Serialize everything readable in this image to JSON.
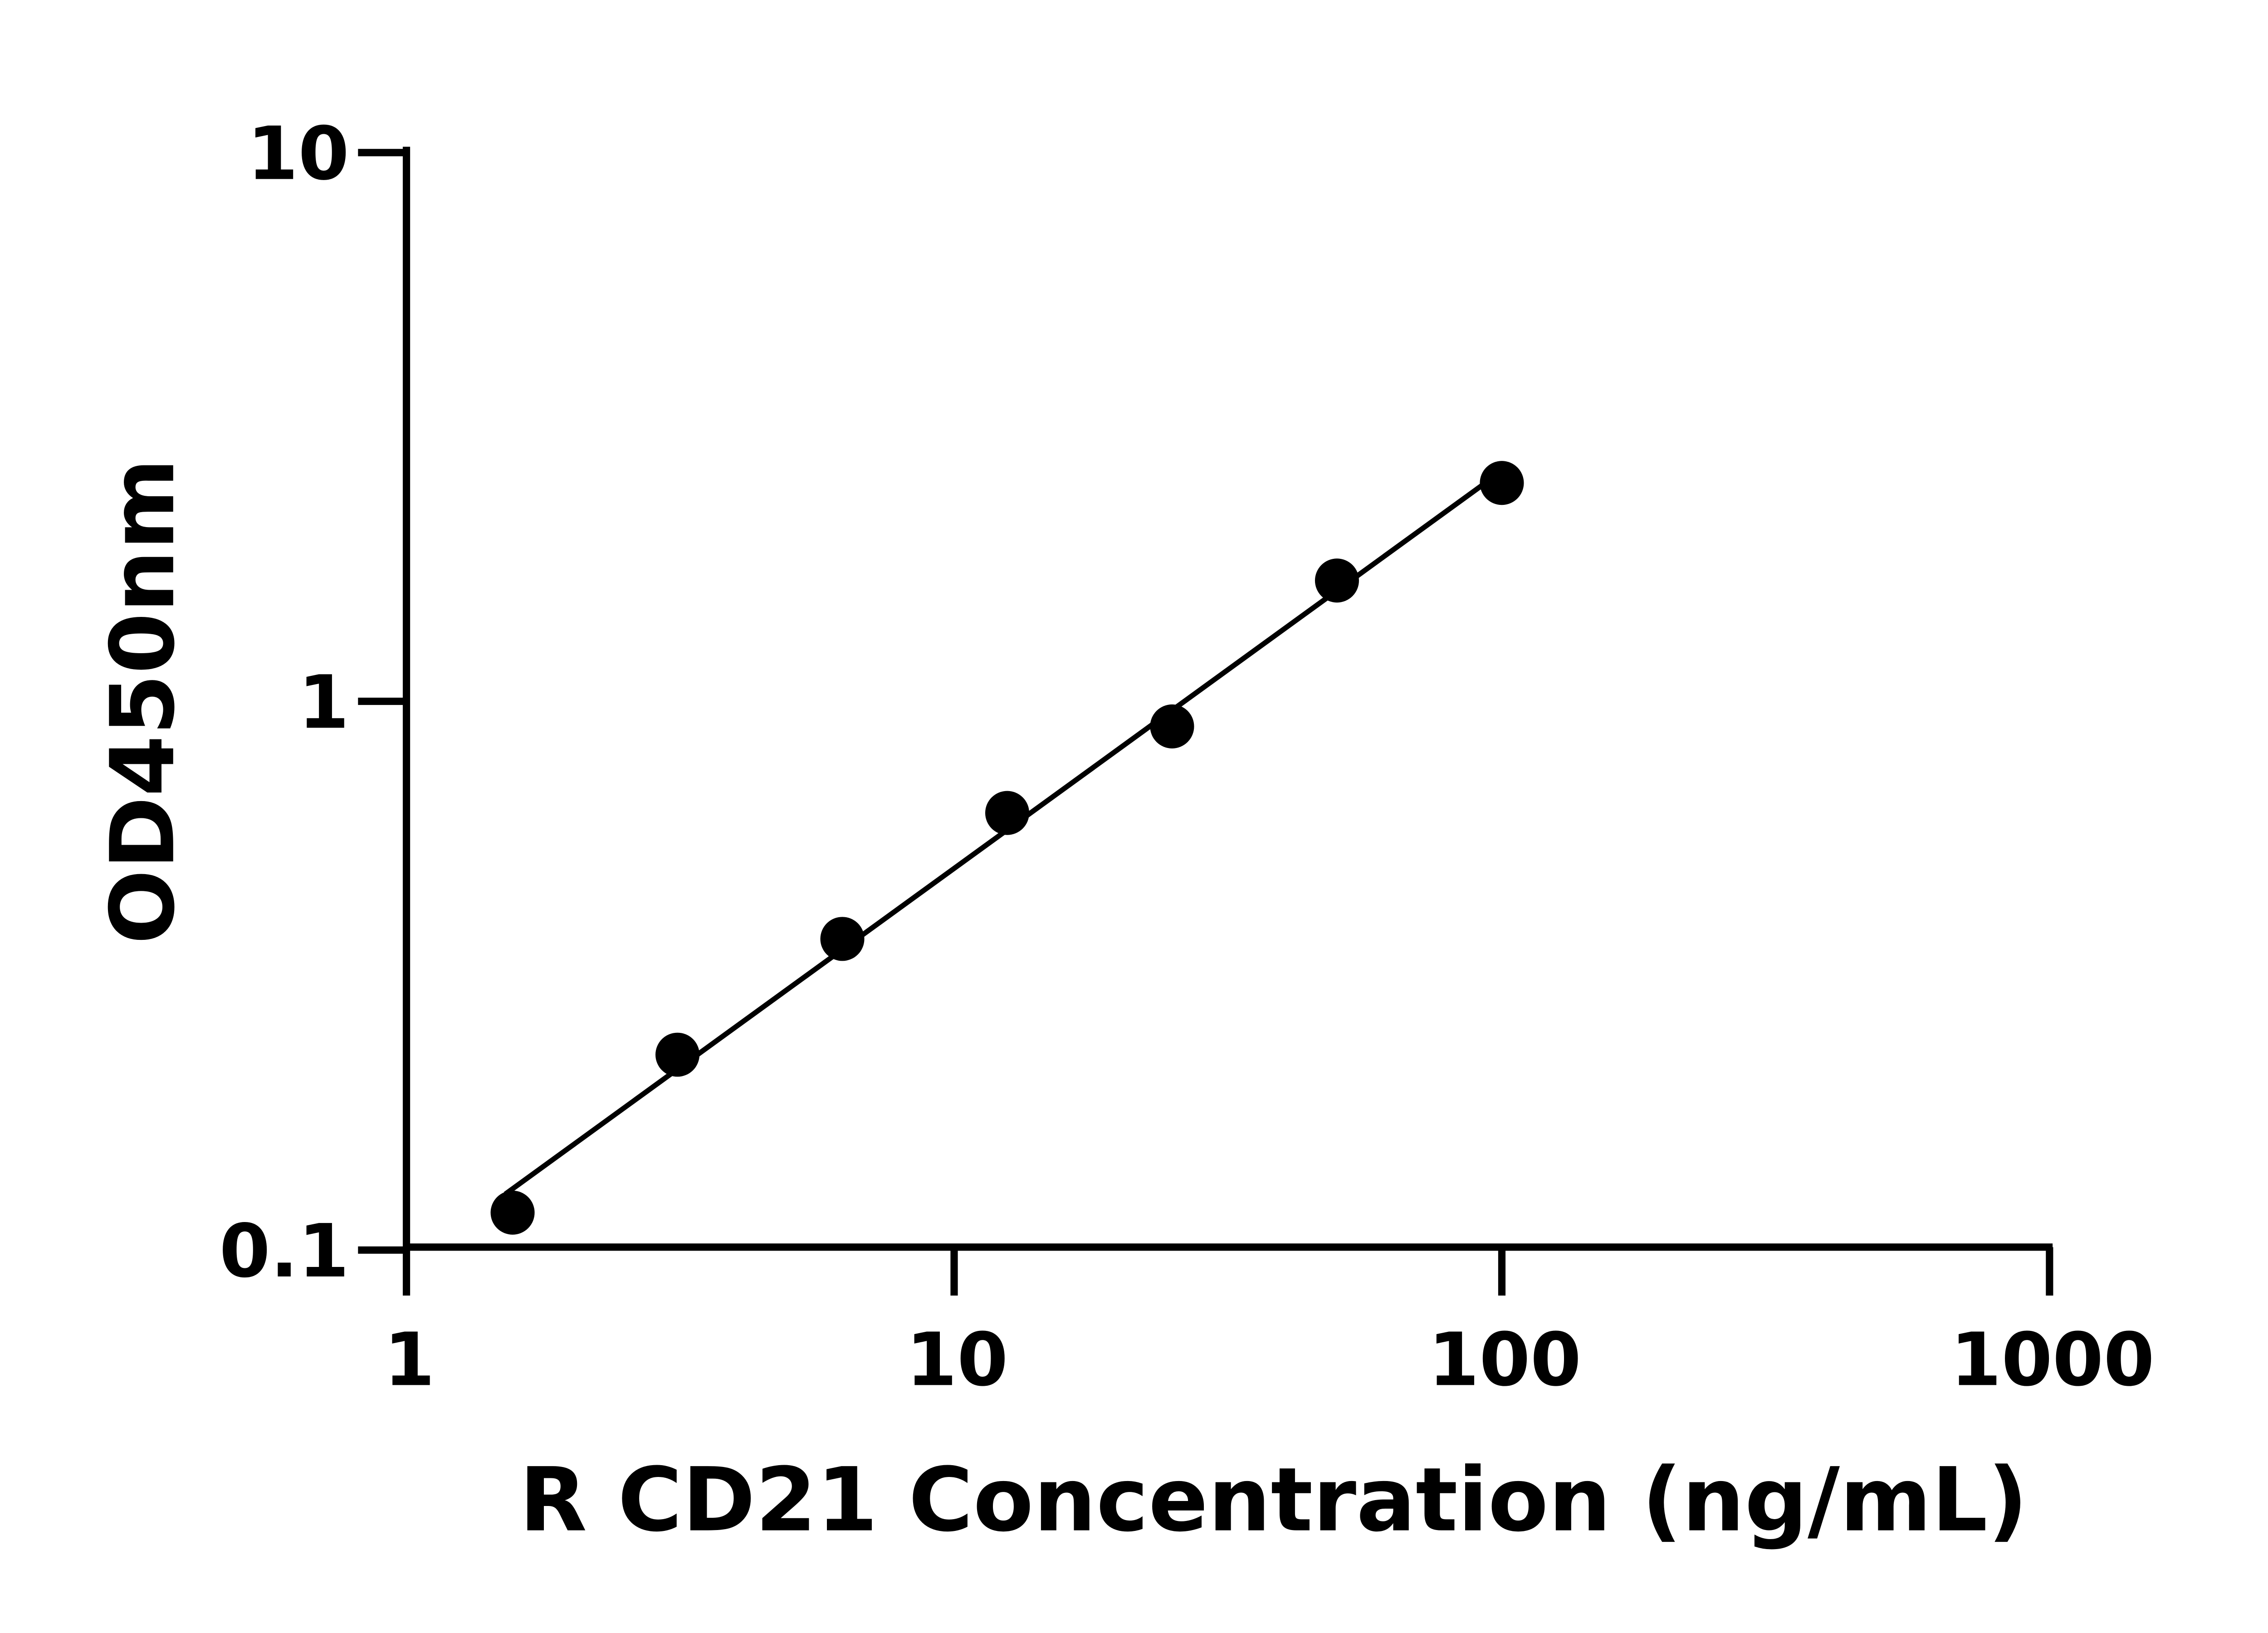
{
  "chart_data": {
    "type": "scatter",
    "title": "",
    "xlabel": "R CD21 Concentration (ng/mL)",
    "ylabel": "OD450nm",
    "xscale": "log",
    "yscale": "log",
    "xlim": [
      1,
      1000
    ],
    "ylim": [
      0.1,
      10
    ],
    "xticks": [
      "1",
      "10",
      "100",
      "1000"
    ],
    "yticks": [
      "0.1",
      "1",
      "10"
    ],
    "grid": false,
    "fit_line": "linear fit in log-log space",
    "colors": {
      "points": "#000000",
      "line": "#000000"
    },
    "series": [
      {
        "x": [
          1.5625,
          3.125,
          6.25,
          12.5,
          25,
          50,
          100
        ],
        "y": [
          0.117,
          0.227,
          0.369,
          0.626,
          0.9,
          1.66,
          2.5
        ]
      }
    ]
  }
}
